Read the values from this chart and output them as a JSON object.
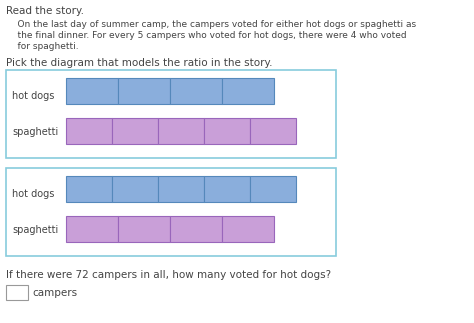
{
  "title": "Read the story.",
  "story_lines": [
    "    On the last day of summer camp, the campers voted for either hot dogs or spaghetti as",
    "    the final dinner. For every 5 campers who voted for hot dogs, there were 4 who voted",
    "    for spaghetti."
  ],
  "pick_text": "Pick the diagram that models the ratio in the story.",
  "question": "If there were 72 campers in all, how many voted for hot dogs?",
  "answer_label": "campers",
  "blue_color": "#8aaedc",
  "purple_color": "#c99fd8",
  "box_border": "#88ccdd",
  "bar_border_blue": "#5588bb",
  "bar_border_purple": "#9966bb",
  "bg_color": "#ffffff",
  "text_color": "#444444",
  "diagram1": {
    "hotdogs_count": 4,
    "spaghetti_count": 5
  },
  "diagram2": {
    "hotdogs_count": 5,
    "spaghetti_count": 4
  }
}
